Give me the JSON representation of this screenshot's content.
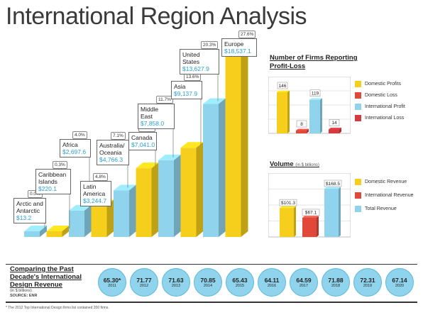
{
  "title": "International Region Analysis",
  "chart_data": [
    {
      "type": "bar",
      "regions": [
        {
          "name": "Arctic and Antarctic",
          "amount": "$13.2",
          "value": 13.2,
          "pct": "0.0%"
        },
        {
          "name": "Caribbean Islands",
          "amount": "$220.1",
          "value": 220.1,
          "pct": "0.3%"
        },
        {
          "name": "Africa",
          "amount": "$2,697.6",
          "value": 2697.6,
          "pct": "4.0%"
        },
        {
          "name": "Latin America",
          "amount": "$3,244.7",
          "value": 3244.7,
          "pct": "4.8%"
        },
        {
          "name": "Australia/ Oceania",
          "amount": "$4,766.3",
          "value": 4766.3,
          "pct": "7.1%"
        },
        {
          "name": "Canada",
          "amount": "$7,041.0",
          "value": 7041.0,
          "pct": "10.5%"
        },
        {
          "name": "Middle East",
          "amount": "$7,858.0",
          "value": 7858.0,
          "pct": "11.7%"
        },
        {
          "name": "Asia",
          "amount": "$9,137.9",
          "value": 9137.9,
          "pct": "13.6%"
        },
        {
          "name": "United States",
          "amount": "$13,627.9",
          "value": 13627.9,
          "pct": "20.3%"
        },
        {
          "name": "Europe",
          "amount": "$18,537.1",
          "value": 18537.1,
          "pct": "27.6%"
        }
      ]
    },
    {
      "type": "bar",
      "title": "Number of Firms Reporting Profit-Loss",
      "categories": [
        "Domestic Profits",
        "Domestic Loss",
        "International Profit",
        "International Loss"
      ],
      "values": [
        146,
        8,
        119,
        14
      ],
      "colors": [
        "#f5cf1c",
        "#e0483a",
        "#8fd4ec",
        "#d43a3f"
      ]
    },
    {
      "type": "bar",
      "title": "Volume",
      "unit_note": "(in $ billions)",
      "categories": [
        "Domestic Revenue",
        "International Revenue",
        "Total Revenue"
      ],
      "values": [
        101.3,
        67.1,
        168.5
      ],
      "labels": [
        "$101.3",
        "$67.1",
        "$168.5"
      ],
      "colors": [
        "#f5cf1c",
        "#e0483a",
        "#8fd4ec"
      ]
    },
    {
      "type": "table",
      "title": "Comparing the Past Decade's International Design Revenue",
      "unit_note": "(in $ billions)",
      "source": "SOURCE: ENR",
      "years": [
        "2011",
        "2012",
        "2013",
        "2014",
        "2015",
        "2016",
        "2017",
        "2018",
        "2019",
        "2020"
      ],
      "values": [
        "65.30*",
        "71.77",
        "71.63",
        "70.85",
        "65.43",
        "64.11",
        "64.59",
        "71.88",
        "72.31",
        "67.14"
      ]
    }
  ],
  "footnote": "* The 2012 Top International Design firms list contained 200 firms."
}
